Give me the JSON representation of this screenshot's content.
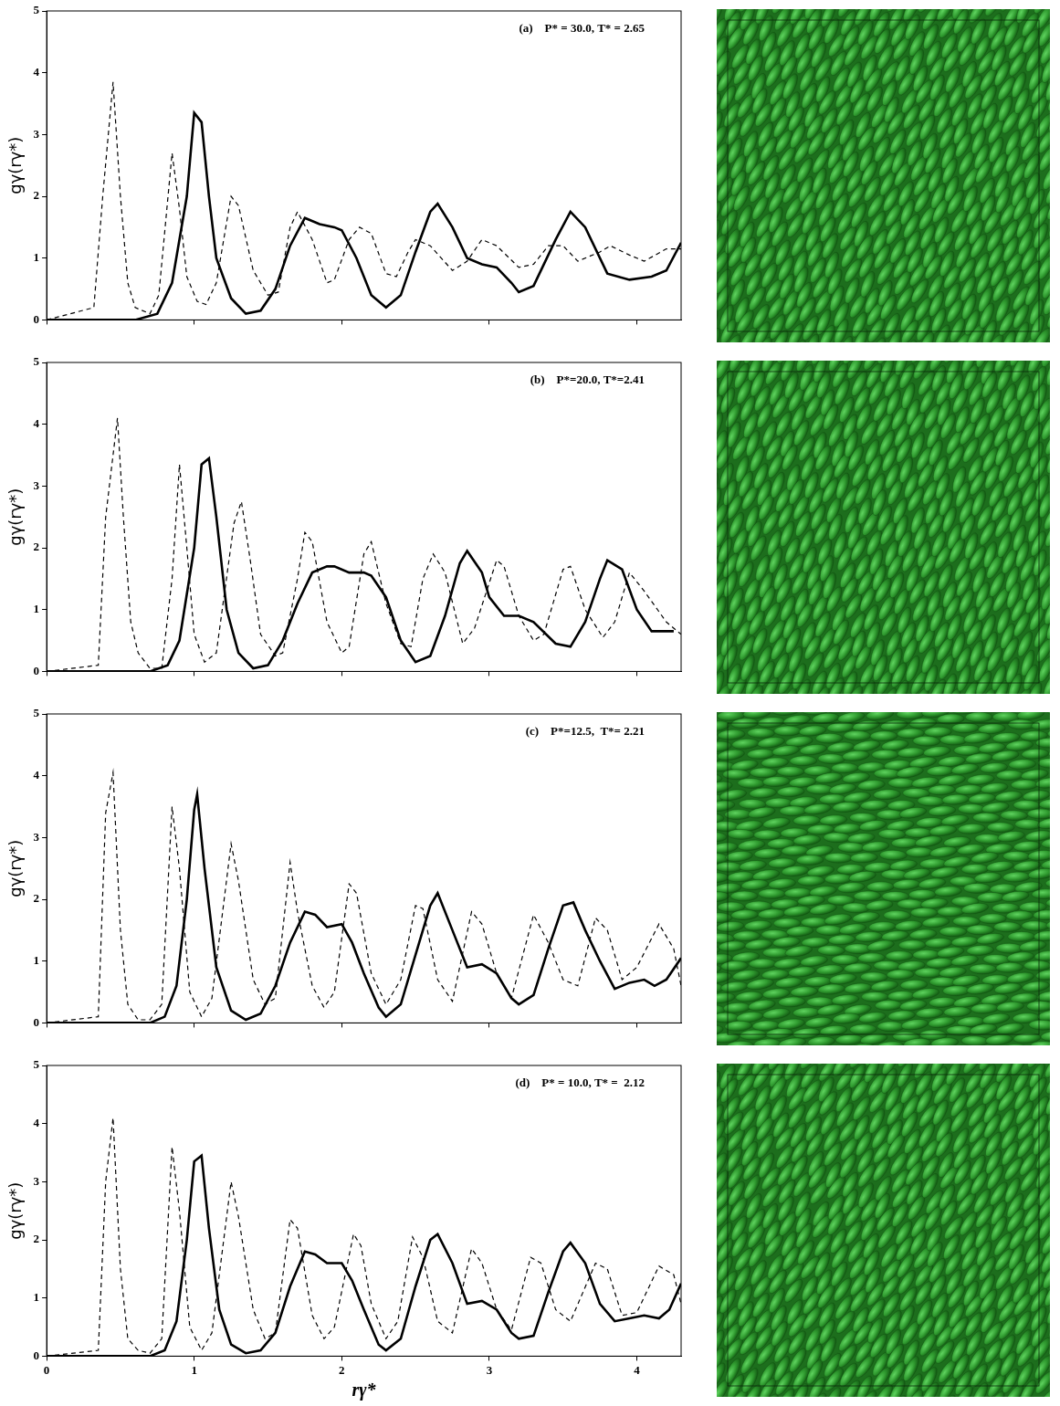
{
  "chart_data": [
    {
      "type": "line",
      "title": "(a)    P* = 30.0, T* = 2.65",
      "y_label": "gγ(rγ*)",
      "xlim": [
        0,
        4.3
      ],
      "xticks": [
        0,
        1,
        2,
        3,
        4
      ],
      "ylim": [
        0,
        5
      ],
      "yticks": [
        0,
        1,
        2,
        3,
        4,
        5
      ],
      "grid": false,
      "tick_labels": "y",
      "series": [
        {
          "color": "#000000",
          "line_style": "dashed",
          "x": [
            0,
            0.32,
            0.38,
            0.45,
            0.5,
            0.55,
            0.6,
            0.7,
            0.76,
            0.85,
            0.9,
            0.95,
            1.02,
            1.08,
            1.15,
            1.25,
            1.3,
            1.4,
            1.5,
            1.57,
            1.65,
            1.7,
            1.8,
            1.9,
            1.95,
            2.05,
            2.12,
            2.2,
            2.3,
            2.37,
            2.45,
            2.5,
            2.6,
            2.75,
            2.85,
            2.95,
            3.05,
            3.2,
            3.3,
            3.4,
            3.5,
            3.6,
            3.75,
            3.82,
            3.95,
            4.05,
            4.2,
            4.3
          ],
          "values": [
            0,
            0.2,
            2.0,
            3.85,
            2.0,
            0.6,
            0.2,
            0.1,
            0.4,
            2.7,
            1.8,
            0.7,
            0.3,
            0.25,
            0.6,
            2.0,
            1.85,
            0.8,
            0.4,
            0.45,
            1.5,
            1.75,
            1.3,
            0.6,
            0.65,
            1.3,
            1.5,
            1.4,
            0.75,
            0.7,
            1.1,
            1.3,
            1.2,
            0.8,
            0.95,
            1.3,
            1.2,
            0.85,
            0.9,
            1.2,
            1.2,
            0.95,
            1.1,
            1.2,
            1.05,
            0.95,
            1.15,
            1.15
          ]
        },
        {
          "color": "#000000",
          "line_style": "solid",
          "x": [
            0,
            0.6,
            0.75,
            0.85,
            0.95,
            1.0,
            1.05,
            1.1,
            1.15,
            1.25,
            1.35,
            1.45,
            1.55,
            1.65,
            1.75,
            1.85,
            1.95,
            2.0,
            2.1,
            2.2,
            2.3,
            2.4,
            2.5,
            2.6,
            2.65,
            2.75,
            2.85,
            2.95,
            3.05,
            3.15,
            3.2,
            3.3,
            3.45,
            3.55,
            3.65,
            3.8,
            3.95,
            4.1,
            4.2,
            4.3
          ],
          "values": [
            0,
            0,
            0.1,
            0.6,
            2.0,
            3.35,
            3.2,
            2.0,
            1.0,
            0.35,
            0.1,
            0.15,
            0.5,
            1.2,
            1.65,
            1.55,
            1.5,
            1.45,
            1.0,
            0.4,
            0.2,
            0.4,
            1.1,
            1.75,
            1.88,
            1.5,
            1.0,
            0.9,
            0.85,
            0.6,
            0.45,
            0.55,
            1.3,
            1.75,
            1.5,
            0.75,
            0.65,
            0.7,
            0.8,
            1.25
          ]
        }
      ]
    },
    {
      "type": "line",
      "title": "(b)    P*=20.0, T*=2.41",
      "y_label": "gγ(rγ*)",
      "xlim": [
        0,
        4.3
      ],
      "xticks": [
        0,
        1,
        2,
        3,
        4
      ],
      "ylim": [
        0,
        5
      ],
      "yticks": [
        0,
        1,
        2,
        3,
        4,
        5
      ],
      "grid": false,
      "tick_labels": "y",
      "series": [
        {
          "color": "#000000",
          "line_style": "dashed",
          "x": [
            0,
            0.35,
            0.4,
            0.48,
            0.52,
            0.57,
            0.62,
            0.7,
            0.78,
            0.85,
            0.9,
            0.95,
            1.0,
            1.07,
            1.15,
            1.27,
            1.32,
            1.38,
            1.45,
            1.55,
            1.6,
            1.7,
            1.75,
            1.8,
            1.9,
            2.0,
            2.05,
            2.15,
            2.2,
            2.3,
            2.4,
            2.47,
            2.55,
            2.62,
            2.7,
            2.82,
            2.9,
            3.05,
            3.1,
            3.2,
            3.3,
            3.37,
            3.5,
            3.55,
            3.65,
            3.77,
            3.85,
            3.95,
            4.05,
            4.2,
            4.3
          ],
          "values": [
            0,
            0.1,
            2.5,
            4.1,
            2.5,
            0.8,
            0.3,
            0.05,
            0.05,
            1.5,
            3.35,
            2.0,
            0.6,
            0.15,
            0.3,
            2.4,
            2.75,
            1.8,
            0.6,
            0.25,
            0.3,
            1.5,
            2.25,
            2.1,
            0.8,
            0.3,
            0.4,
            1.9,
            2.1,
            1.1,
            0.45,
            0.4,
            1.5,
            1.9,
            1.6,
            0.45,
            0.7,
            1.8,
            1.7,
            0.9,
            0.5,
            0.6,
            1.65,
            1.7,
            1.0,
            0.55,
            0.8,
            1.6,
            1.3,
            0.8,
            0.6
          ]
        },
        {
          "color": "#000000",
          "line_style": "solid",
          "x": [
            0,
            0.7,
            0.82,
            0.9,
            1.0,
            1.05,
            1.1,
            1.15,
            1.22,
            1.3,
            1.4,
            1.5,
            1.6,
            1.7,
            1.8,
            1.9,
            1.95,
            2.05,
            2.15,
            2.2,
            2.3,
            2.4,
            2.5,
            2.6,
            2.7,
            2.8,
            2.85,
            2.95,
            3.0,
            3.1,
            3.2,
            3.3,
            3.45,
            3.55,
            3.65,
            3.75,
            3.8,
            3.9,
            4.0,
            4.1,
            4.25
          ],
          "values": [
            0,
            0,
            0.1,
            0.5,
            2.0,
            3.35,
            3.45,
            2.5,
            1.0,
            0.3,
            0.05,
            0.1,
            0.5,
            1.1,
            1.6,
            1.7,
            1.7,
            1.6,
            1.6,
            1.55,
            1.2,
            0.5,
            0.15,
            0.25,
            0.9,
            1.75,
            1.95,
            1.6,
            1.2,
            0.9,
            0.9,
            0.8,
            0.45,
            0.4,
            0.8,
            1.5,
            1.8,
            1.65,
            1.0,
            0.65,
            0.65
          ]
        }
      ]
    },
    {
      "type": "line",
      "title": "(c)    P*=12.5,  T*= 2.21",
      "y_label": "gγ(rγ*)",
      "xlim": [
        0,
        4.3
      ],
      "xticks": [
        0,
        1,
        2,
        3,
        4
      ],
      "ylim": [
        0,
        5
      ],
      "yticks": [
        0,
        1,
        2,
        3,
        4,
        5
      ],
      "grid": false,
      "tick_labels": "y",
      "series": [
        {
          "color": "#000000",
          "line_style": "dashed",
          "x": [
            0,
            0.35,
            0.4,
            0.45,
            0.5,
            0.55,
            0.62,
            0.7,
            0.78,
            0.85,
            0.9,
            0.97,
            1.05,
            1.12,
            1.25,
            1.3,
            1.4,
            1.48,
            1.55,
            1.65,
            1.7,
            1.8,
            1.88,
            1.95,
            2.05,
            2.1,
            2.2,
            2.3,
            2.4,
            2.5,
            2.55,
            2.65,
            2.75,
            2.88,
            2.95,
            3.05,
            3.15,
            3.3,
            3.4,
            3.5,
            3.6,
            3.72,
            3.8,
            3.9,
            4.0,
            4.15,
            4.25,
            4.3
          ],
          "values": [
            0,
            0.1,
            3.4,
            4.05,
            1.5,
            0.3,
            0.05,
            0.05,
            0.3,
            3.5,
            2.5,
            0.5,
            0.1,
            0.4,
            2.9,
            2.3,
            0.7,
            0.3,
            0.4,
            2.6,
            1.8,
            0.6,
            0.25,
            0.5,
            2.25,
            2.1,
            0.8,
            0.3,
            0.7,
            1.9,
            1.85,
            0.7,
            0.35,
            1.8,
            1.6,
            0.8,
            0.4,
            1.75,
            1.3,
            0.7,
            0.6,
            1.7,
            1.5,
            0.7,
            0.9,
            1.6,
            1.2,
            0.6
          ]
        },
        {
          "color": "#000000",
          "line_style": "solid",
          "x": [
            0,
            0.7,
            0.8,
            0.88,
            0.95,
            1.0,
            1.02,
            1.07,
            1.15,
            1.25,
            1.35,
            1.45,
            1.55,
            1.65,
            1.75,
            1.82,
            1.9,
            2.0,
            2.07,
            2.15,
            2.25,
            2.3,
            2.4,
            2.5,
            2.6,
            2.65,
            2.75,
            2.85,
            2.95,
            3.05,
            3.15,
            3.2,
            3.3,
            3.4,
            3.5,
            3.57,
            3.65,
            3.75,
            3.85,
            3.95,
            4.05,
            4.12,
            4.2,
            4.3
          ],
          "values": [
            0,
            0,
            0.1,
            0.6,
            2.0,
            3.45,
            3.7,
            2.5,
            0.9,
            0.2,
            0.05,
            0.15,
            0.6,
            1.3,
            1.8,
            1.75,
            1.55,
            1.6,
            1.3,
            0.8,
            0.25,
            0.1,
            0.3,
            1.1,
            1.9,
            2.1,
            1.5,
            0.9,
            0.95,
            0.8,
            0.4,
            0.3,
            0.45,
            1.2,
            1.9,
            1.95,
            1.5,
            1.0,
            0.55,
            0.65,
            0.7,
            0.6,
            0.7,
            1.05
          ]
        }
      ]
    },
    {
      "type": "line",
      "title": "(d)    P* = 10.0, T* =  2.12",
      "y_label": "gγ(rγ*)",
      "x_label": "rγ*",
      "xlim": [
        0,
        4.3
      ],
      "xticks": [
        0,
        1,
        2,
        3,
        4
      ],
      "ylim": [
        0,
        5
      ],
      "yticks": [
        0,
        1,
        2,
        3,
        4,
        5
      ],
      "grid": false,
      "series": [
        {
          "color": "#000000",
          "line_style": "dashed",
          "x": [
            0,
            0.35,
            0.4,
            0.45,
            0.5,
            0.55,
            0.62,
            0.7,
            0.78,
            0.85,
            0.9,
            0.97,
            1.05,
            1.12,
            1.25,
            1.3,
            1.4,
            1.48,
            1.55,
            1.65,
            1.7,
            1.8,
            1.88,
            1.95,
            2.08,
            2.13,
            2.2,
            2.3,
            2.38,
            2.48,
            2.55,
            2.65,
            2.75,
            2.88,
            2.95,
            3.05,
            3.15,
            3.28,
            3.35,
            3.45,
            3.55,
            3.72,
            3.8,
            3.9,
            4.0,
            4.15,
            4.25,
            4.3
          ],
          "values": [
            0,
            0.1,
            3.0,
            4.1,
            1.5,
            0.3,
            0.1,
            0.05,
            0.3,
            3.6,
            2.5,
            0.5,
            0.1,
            0.4,
            3.0,
            2.4,
            0.8,
            0.3,
            0.4,
            2.35,
            2.2,
            0.7,
            0.3,
            0.5,
            2.1,
            1.9,
            0.9,
            0.3,
            0.6,
            2.05,
            1.7,
            0.6,
            0.4,
            1.85,
            1.6,
            0.8,
            0.45,
            1.7,
            1.6,
            0.8,
            0.6,
            1.6,
            1.5,
            0.7,
            0.75,
            1.55,
            1.4,
            0.9
          ]
        },
        {
          "color": "#000000",
          "line_style": "solid",
          "x": [
            0,
            0.7,
            0.8,
            0.88,
            0.95,
            1.0,
            1.05,
            1.1,
            1.17,
            1.25,
            1.35,
            1.45,
            1.55,
            1.65,
            1.75,
            1.82,
            1.9,
            2.0,
            2.07,
            2.15,
            2.25,
            2.3,
            2.4,
            2.5,
            2.6,
            2.65,
            2.75,
            2.85,
            2.95,
            3.05,
            3.15,
            3.2,
            3.3,
            3.4,
            3.5,
            3.55,
            3.65,
            3.75,
            3.85,
            3.95,
            4.05,
            4.15,
            4.22,
            4.3
          ],
          "values": [
            0,
            0,
            0.1,
            0.6,
            2.0,
            3.35,
            3.45,
            2.2,
            0.8,
            0.2,
            0.05,
            0.1,
            0.4,
            1.2,
            1.8,
            1.75,
            1.6,
            1.6,
            1.3,
            0.8,
            0.2,
            0.1,
            0.3,
            1.2,
            2.0,
            2.1,
            1.6,
            0.9,
            0.95,
            0.8,
            0.4,
            0.3,
            0.35,
            1.1,
            1.8,
            1.95,
            1.6,
            0.9,
            0.6,
            0.65,
            0.7,
            0.65,
            0.8,
            1.25
          ]
        }
      ]
    }
  ]
}
